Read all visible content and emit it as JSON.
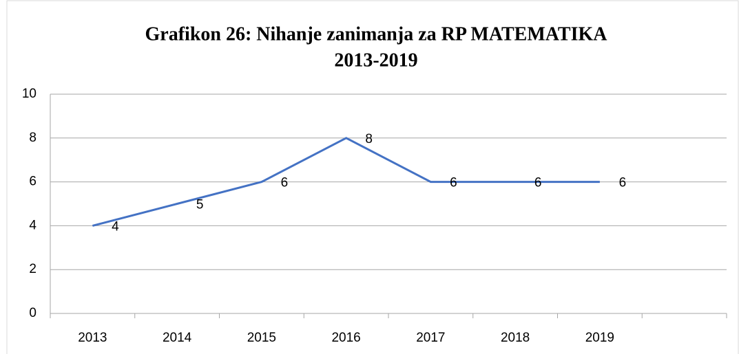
{
  "chart_data": {
    "type": "line",
    "title": [
      "Grafikon 26: Nihanje zanimanja za RP MATEMATIKA",
      "2013-2019"
    ],
    "categories": [
      "2013",
      "2014",
      "2015",
      "2016",
      "2017",
      "2018",
      "2019",
      null
    ],
    "series": [
      {
        "name": "RP MATEMATIKA",
        "color": "#4472c4",
        "values": [
          4,
          5,
          6,
          8,
          6,
          6,
          6,
          null
        ]
      }
    ],
    "ylim": [
      0,
      10
    ],
    "yticks": [
      0,
      2,
      4,
      6,
      8,
      10
    ],
    "grid": true,
    "data_labels": true
  }
}
